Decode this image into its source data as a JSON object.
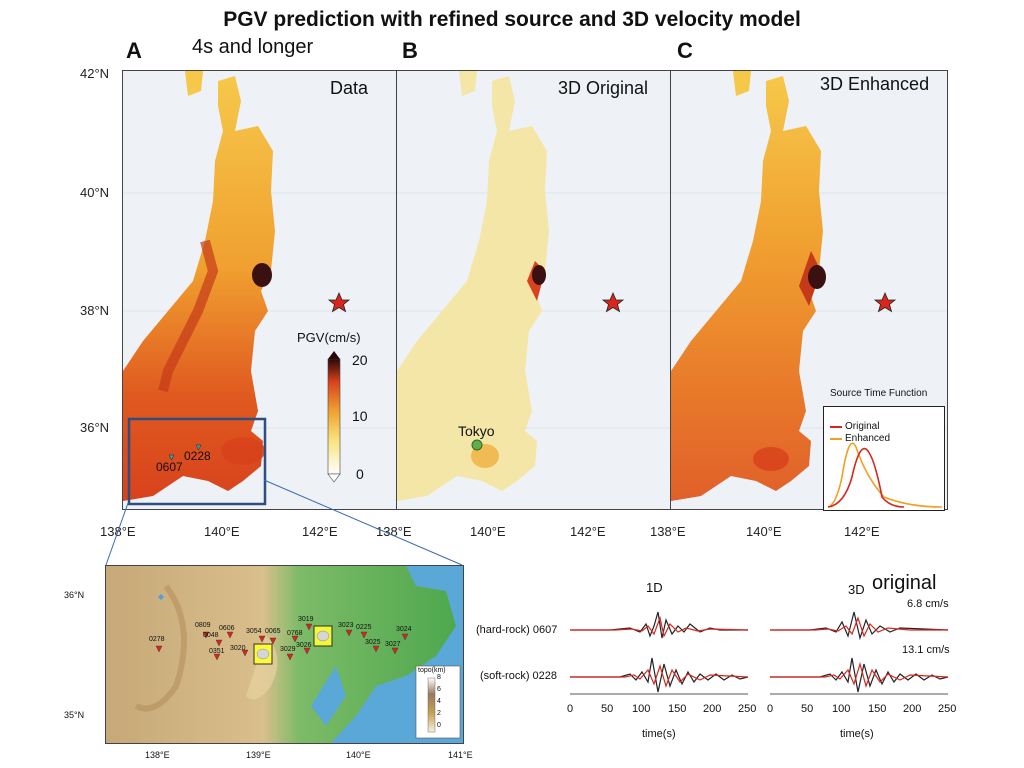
{
  "title": "PGV prediction with refined source and 3D velocity model",
  "subtitle": "4s and longer",
  "panels": [
    {
      "letter": "A",
      "title": "Data"
    },
    {
      "letter": "B",
      "title": "3D Original"
    },
    {
      "letter": "C",
      "title": "3D Enhanced"
    }
  ],
  "lat_ticks": [
    "42°N",
    "40°N",
    "38°N",
    "36°N"
  ],
  "lon_ticks": [
    "138°E",
    "140°E",
    "142°E"
  ],
  "colorbar": {
    "label": "PGV(cm/s)",
    "ticks": [
      "20",
      "10",
      "0"
    ]
  },
  "stations_main": [
    "0228",
    "0607"
  ],
  "city_label": "Tokyo",
  "stf": {
    "title": "Source Time Function",
    "original": "Original",
    "enhanced": "Enhanced",
    "original_color": "#d7261e",
    "enhanced_color": "#f0a020"
  },
  "inset": {
    "lat_ticks": [
      "36°N",
      "35°N"
    ],
    "lon_ticks": [
      "138°E",
      "139°E",
      "140°E",
      "141°E"
    ],
    "topo_label": "topo(km)",
    "topo_ticks": [
      "8",
      "6",
      "4",
      "2",
      "0"
    ],
    "stations": [
      "0278",
      "0809",
      "0048",
      "0606",
      "0351",
      "3020",
      "3054",
      "0065",
      "0768",
      "3029",
      "3026",
      "3019",
      "3023",
      "0225",
      "3024",
      "3025",
      "3027"
    ]
  },
  "waveforms": {
    "col1_title": "1D",
    "col2_title_small": "3D",
    "col2_title_big": "original",
    "amp1": "6.8 cm/s",
    "amp2": "13.1 cm/s",
    "row1": "(hard-rock) 0607",
    "row2": "(soft-rock) 0228",
    "xticks": [
      "0",
      "50",
      "100",
      "150",
      "200",
      "250"
    ],
    "xlabel": "time(s)"
  },
  "colors": {
    "data_red": "#d7261e",
    "synthetic": "#222222",
    "station_red": "#d7261e",
    "station_cyan": "#2aa7b8"
  }
}
